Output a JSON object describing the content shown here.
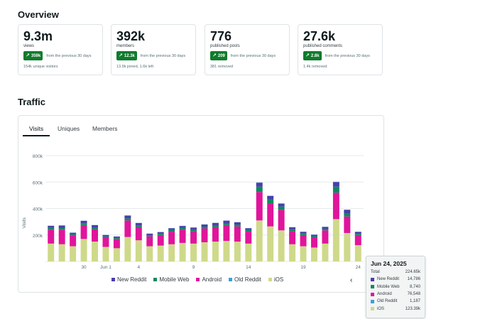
{
  "overview": {
    "title": "Overview",
    "cards": [
      {
        "value": "9.3m",
        "label": "views",
        "badge": "359k",
        "change_text": "from the previous 30 days",
        "sub": "154k unique visitors"
      },
      {
        "value": "392k",
        "label": "members",
        "badge": "12.3k",
        "change_text": "from the previous 30 days",
        "sub": "13.9k joined, 1.6k left"
      },
      {
        "value": "776",
        "label": "published posts",
        "badge": "209",
        "change_text": "from the previous 30 days",
        "sub": "381 removed"
      },
      {
        "value": "27.6k",
        "label": "published comments",
        "badge": "2.8k",
        "change_text": "from the previous 30 days",
        "sub": "1.4k removed"
      }
    ]
  },
  "traffic": {
    "title": "Traffic",
    "tabs": [
      "Visits",
      "Uniques",
      "Members"
    ],
    "active_tab": "Visits"
  },
  "colors": {
    "ios": "#cfd98a",
    "android": "#e0159b",
    "mobile_web": "#0c8a5e",
    "new_reddit": "#4a3ea8",
    "old_reddit": "#3ea0d6",
    "badge": "#0f7b2c",
    "grid": "#e6eaeb"
  },
  "chart_data": {
    "type": "bar",
    "stacked": true,
    "title": "",
    "ylabel": "Visits",
    "xlabel": "",
    "ylim": [
      0,
      800000
    ],
    "y_ticks": [
      "200k",
      "400k",
      "600k",
      "800k"
    ],
    "x_tick_labels": [
      {
        "index": 3,
        "label": "30"
      },
      {
        "index": 5,
        "label": "Jun 1"
      },
      {
        "index": 8,
        "label": "4"
      },
      {
        "index": 13,
        "label": "9"
      },
      {
        "index": 18,
        "label": "14"
      },
      {
        "index": 23,
        "label": "19"
      },
      {
        "index": 28,
        "label": "24"
      }
    ],
    "categories": [
      "May 27",
      "May 28",
      "May 29",
      "May 30",
      "May 31",
      "Jun 1",
      "Jun 2",
      "Jun 3",
      "Jun 4",
      "Jun 5",
      "Jun 6",
      "Jun 7",
      "Jun 8",
      "Jun 9",
      "Jun 10",
      "Jun 11",
      "Jun 12",
      "Jun 13",
      "Jun 14",
      "Jun 15",
      "Jun 16",
      "Jun 17",
      "Jun 18",
      "Jun 19",
      "Jun 20",
      "Jun 21",
      "Jun 22",
      "Jun 23",
      "Jun 24"
    ],
    "series": [
      {
        "name": "iOS",
        "color_key": "ios",
        "values": [
          135000,
          130000,
          115000,
          170000,
          150000,
          110000,
          100000,
          185000,
          160000,
          115000,
          120000,
          130000,
          140000,
          135000,
          145000,
          150000,
          155000,
          150000,
          135000,
          310000,
          265000,
          235000,
          130000,
          115000,
          105000,
          135000,
          320000,
          215000,
          123390
        ]
      },
      {
        "name": "Android",
        "color_key": "android",
        "values": [
          105000,
          110000,
          80000,
          105000,
          95000,
          70000,
          70000,
          125000,
          100000,
          75000,
          80000,
          95000,
          100000,
          95000,
          105000,
          110000,
          120000,
          115000,
          90000,
          215000,
          175000,
          155000,
          100000,
          85000,
          75000,
          100000,
          200000,
          125000,
          76548
        ]
      },
      {
        "name": "Mobile Web",
        "color_key": "mobile_web",
        "values": [
          14000,
          15000,
          10000,
          14000,
          13000,
          9000,
          8000,
          16000,
          13000,
          9000,
          10000,
          12000,
          13000,
          12000,
          13000,
          14000,
          15000,
          14000,
          12000,
          40000,
          30000,
          25000,
          13000,
          11000,
          10000,
          12000,
          45000,
          25000,
          8740
        ]
      },
      {
        "name": "New Reddit",
        "color_key": "new_reddit",
        "values": [
          15000,
          16000,
          12000,
          18000,
          16000,
          11000,
          10000,
          20000,
          17000,
          11000,
          12000,
          14000,
          15000,
          14000,
          16000,
          17000,
          18000,
          17000,
          14000,
          30000,
          25000,
          22000,
          15000,
          13000,
          12000,
          14000,
          35000,
          25000,
          14786
        ]
      },
      {
        "name": "Old Reddit",
        "color_key": "old_reddit",
        "values": [
          1500,
          1500,
          1000,
          1500,
          1500,
          1000,
          1000,
          2000,
          1500,
          1000,
          1000,
          1200,
          1300,
          1200,
          1300,
          1400,
          1500,
          1400,
          1200,
          2500,
          2000,
          1800,
          1300,
          1100,
          1000,
          1200,
          2500,
          2000,
          1187
        ]
      }
    ],
    "legend": [
      {
        "name": "New Reddit",
        "color_key": "new_reddit"
      },
      {
        "name": "Mobile Web",
        "color_key": "mobile_web"
      },
      {
        "name": "Android",
        "color_key": "android"
      },
      {
        "name": "Old Reddit",
        "color_key": "old_reddit"
      },
      {
        "name": "iOS",
        "color_key": "ios"
      }
    ],
    "legend_position": "bottom-center"
  },
  "tooltip": {
    "date": "Jun 24, 2025",
    "rows": [
      {
        "label": "Total",
        "value": "224.65k",
        "color_key": ""
      },
      {
        "label": "New Reddit",
        "value": "14,786",
        "color_key": "new_reddit"
      },
      {
        "label": "Mobile Web",
        "value": "8,740",
        "color_key": "mobile_web"
      },
      {
        "label": "Android",
        "value": "76,548",
        "color_key": "android"
      },
      {
        "label": "Old Reddit",
        "value": "1,187",
        "color_key": "old_reddit"
      },
      {
        "label": "iOS",
        "value": "123.39k",
        "color_key": "ios"
      }
    ]
  },
  "icons": {
    "badge_arrow": "arrow-up-right-icon",
    "nav": "chevron-left-icon"
  }
}
